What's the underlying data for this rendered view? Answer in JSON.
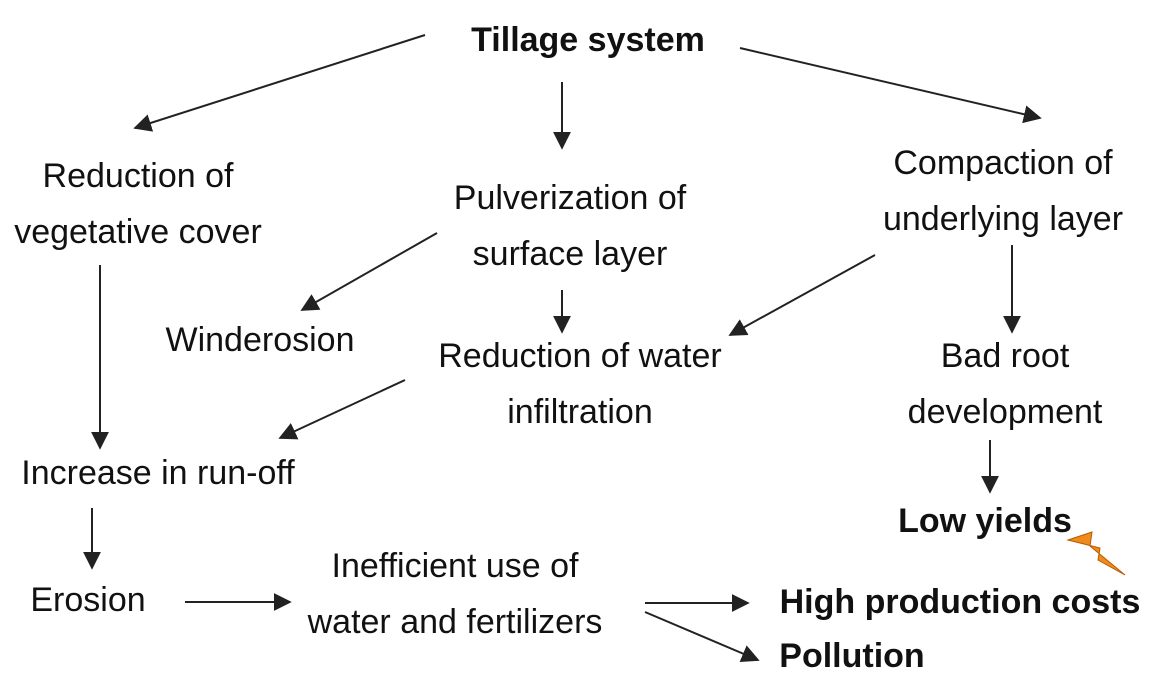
{
  "nodes": [
    {
      "label": "Tillage system"
    },
    {
      "label": "Reduction of"
    },
    {
      "label": "vegetative cover"
    },
    {
      "label": "Pulverization of"
    },
    {
      "label": "surface layer"
    },
    {
      "label": "Compaction of"
    },
    {
      "label": "underlying layer"
    },
    {
      "label": "Winderosion"
    },
    {
      "label": "Reduction of water"
    },
    {
      "label": "infiltration"
    },
    {
      "label": "Bad root"
    },
    {
      "label": "development"
    },
    {
      "label": "Increase in run-off"
    },
    {
      "label": "Low yields"
    },
    {
      "label": "Erosion"
    },
    {
      "label": "Inefficient use of"
    },
    {
      "label": "water and fertilizers"
    },
    {
      "label": "High production costs"
    },
    {
      "label": "Pollution"
    }
  ]
}
